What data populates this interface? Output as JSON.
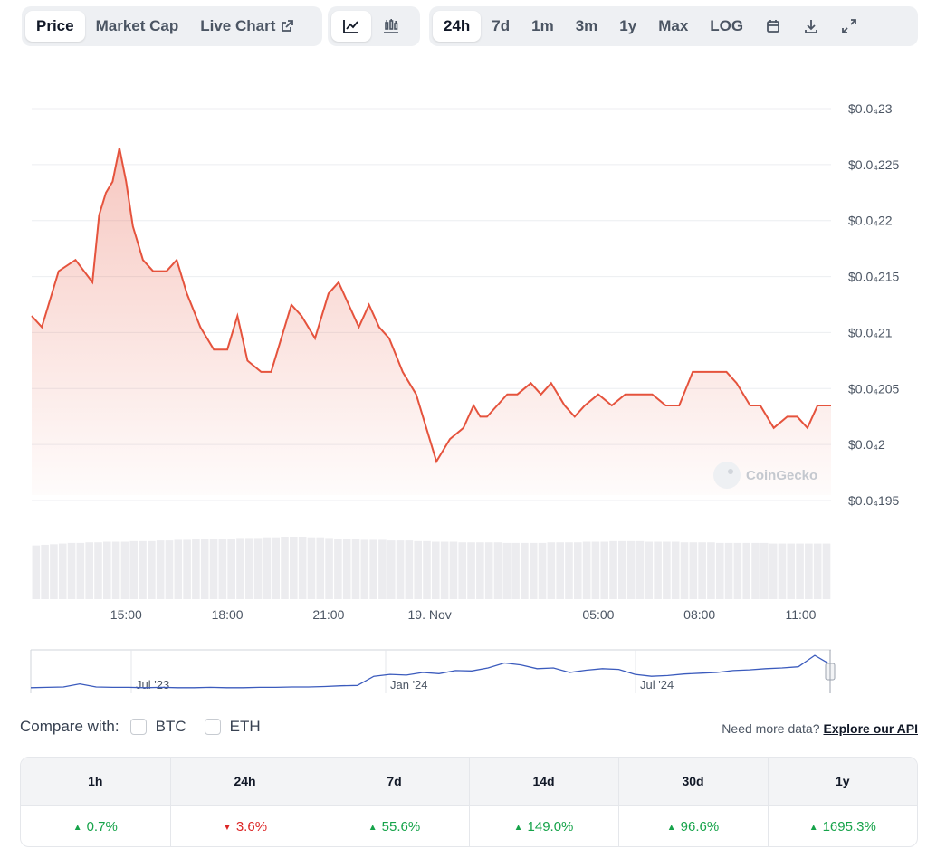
{
  "toolbar": {
    "type_tabs": [
      {
        "label": "Price",
        "active": true
      },
      {
        "label": "Market Cap",
        "active": false
      },
      {
        "label": "Live Chart",
        "active": false
      }
    ],
    "view_icons": [
      "line-chart-icon",
      "candlestick-icon"
    ],
    "ranges": [
      {
        "label": "24h",
        "active": true
      },
      {
        "label": "7d",
        "active": false
      },
      {
        "label": "1m",
        "active": false
      },
      {
        "label": "3m",
        "active": false
      },
      {
        "label": "1y",
        "active": false
      },
      {
        "label": "Max",
        "active": false
      },
      {
        "label": "LOG",
        "active": false
      }
    ],
    "action_icons": [
      "calendar-icon",
      "download-icon",
      "expand-icon"
    ]
  },
  "chart_data": {
    "type": "area",
    "title": "",
    "xlabel": "",
    "ylabel": "",
    "y_tick_labels": [
      "$0.0₄23",
      "$0.0₄225",
      "$0.0₄22",
      "$0.0₄215",
      "$0.0₄21",
      "$0.0₄205",
      "$0.0₄2",
      "$0.0₄195"
    ],
    "y_tick_values": [
      2.3e-05,
      2.25e-05,
      2.2e-05,
      2.15e-05,
      2.1e-05,
      2.05e-05,
      2e-05,
      1.95e-05
    ],
    "ylim": [
      1.95e-05,
      2.3e-05
    ],
    "x_tick_labels": [
      "15:00",
      "18:00",
      "21:00",
      "19. Nov",
      "05:00",
      "08:00",
      "11:00"
    ],
    "x_tick_hours": [
      15,
      18,
      21,
      24,
      29,
      32,
      35
    ],
    "xlim_hours": [
      12.2,
      35.9
    ],
    "series": [
      {
        "color": "#e5533d",
        "x_hours": [
          12.2,
          12.5,
          13.0,
          13.5,
          14.0,
          14.2,
          14.4,
          14.6,
          14.8,
          15.0,
          15.2,
          15.5,
          15.8,
          16.2,
          16.5,
          16.8,
          17.2,
          17.6,
          18.0,
          18.3,
          18.6,
          19.0,
          19.3,
          19.6,
          19.9,
          20.2,
          20.6,
          21.0,
          21.3,
          21.6,
          21.9,
          22.2,
          22.5,
          22.8,
          23.2,
          23.6,
          23.9,
          24.2,
          24.6,
          25.0,
          25.3,
          25.5,
          25.7,
          26.0,
          26.3,
          26.6,
          27.0,
          27.3,
          27.6,
          28.0,
          28.3,
          28.6,
          29.0,
          29.4,
          29.8,
          30.2,
          30.6,
          31.0,
          31.4,
          31.8,
          32.2,
          32.5,
          32.8,
          33.1,
          33.5,
          33.8,
          34.2,
          34.6,
          34.9,
          35.2,
          35.5,
          35.9
        ],
        "values": [
          2.11e-05,
          2.1e-05,
          2.15e-05,
          2.16e-05,
          2.14e-05,
          2.2e-05,
          2.22e-05,
          2.23e-05,
          2.26e-05,
          2.23e-05,
          2.19e-05,
          2.16e-05,
          2.15e-05,
          2.15e-05,
          2.16e-05,
          2.13e-05,
          2.1e-05,
          2.08e-05,
          2.08e-05,
          2.11e-05,
          2.07e-05,
          2.06e-05,
          2.06e-05,
          2.09e-05,
          2.12e-05,
          2.11e-05,
          2.09e-05,
          2.13e-05,
          2.14e-05,
          2.12e-05,
          2.1e-05,
          2.12e-05,
          2.1e-05,
          2.09e-05,
          2.06e-05,
          2.04e-05,
          2.01e-05,
          1.98e-05,
          2e-05,
          2.01e-05,
          2.03e-05,
          2.02e-05,
          2.02e-05,
          2.03e-05,
          2.04e-05,
          2.04e-05,
          2.05e-05,
          2.04e-05,
          2.05e-05,
          2.03e-05,
          2.02e-05,
          2.03e-05,
          2.04e-05,
          2.03e-05,
          2.04e-05,
          2.04e-05,
          2.04e-05,
          2.03e-05,
          2.03e-05,
          2.06e-05,
          2.06e-05,
          2.06e-05,
          2.06e-05,
          2.05e-05,
          2.03e-05,
          2.03e-05,
          2.01e-05,
          2.02e-05,
          2.02e-05,
          2.01e-05,
          2.03e-05,
          2.03e-05
        ]
      }
    ],
    "volume": {
      "values": [
        0.86,
        0.87,
        0.88,
        0.89,
        0.9,
        0.9,
        0.91,
        0.91,
        0.92,
        0.92,
        0.92,
        0.93,
        0.93,
        0.93,
        0.94,
        0.94,
        0.95,
        0.95,
        0.96,
        0.96,
        0.97,
        0.97,
        0.97,
        0.98,
        0.98,
        0.98,
        0.99,
        0.99,
        1.0,
        1.0,
        1.0,
        0.99,
        0.99,
        0.98,
        0.97,
        0.96,
        0.96,
        0.95,
        0.95,
        0.95,
        0.94,
        0.94,
        0.94,
        0.93,
        0.93,
        0.92,
        0.92,
        0.92,
        0.91,
        0.91,
        0.91,
        0.91,
        0.91,
        0.9,
        0.9,
        0.9,
        0.9,
        0.9,
        0.91,
        0.91,
        0.91,
        0.91,
        0.92,
        0.92,
        0.92,
        0.93,
        0.93,
        0.93,
        0.93,
        0.92,
        0.92,
        0.92,
        0.92,
        0.91,
        0.91,
        0.91,
        0.91,
        0.9,
        0.9,
        0.9,
        0.9,
        0.9,
        0.9,
        0.89,
        0.89,
        0.89,
        0.89,
        0.89,
        0.89,
        0.89
      ]
    },
    "watermark": "CoinGecko",
    "grid": true
  },
  "navigator": {
    "labels": [
      "Jul '23",
      "Jan '24",
      "Jul '24"
    ],
    "series_values": [
      0.1,
      0.11,
      0.12,
      0.2,
      0.12,
      0.11,
      0.11,
      0.1,
      0.11,
      0.1,
      0.1,
      0.11,
      0.1,
      0.1,
      0.11,
      0.11,
      0.12,
      0.12,
      0.13,
      0.15,
      0.16,
      0.4,
      0.45,
      0.43,
      0.5,
      0.47,
      0.55,
      0.54,
      0.62,
      0.75,
      0.7,
      0.6,
      0.62,
      0.5,
      0.56,
      0.6,
      0.58,
      0.45,
      0.4,
      0.42,
      0.46,
      0.48,
      0.5,
      0.55,
      0.57,
      0.6,
      0.62,
      0.65,
      0.95,
      0.7
    ]
  },
  "compare": {
    "label": "Compare with:",
    "options": [
      "BTC",
      "ETH"
    ],
    "more_text": "Need more data?",
    "more_link": "Explore our API"
  },
  "stats": [
    {
      "period": "1h",
      "value": "0.7%",
      "dir": "up"
    },
    {
      "period": "24h",
      "value": "3.6%",
      "dir": "down"
    },
    {
      "period": "7d",
      "value": "55.6%",
      "dir": "up"
    },
    {
      "period": "14d",
      "value": "149.0%",
      "dir": "up"
    },
    {
      "period": "30d",
      "value": "96.6%",
      "dir": "up"
    },
    {
      "period": "1y",
      "value": "1695.3%",
      "dir": "up"
    }
  ],
  "colors": {
    "line": "#e5533d",
    "up": "#16a34a",
    "down": "#dc2626",
    "nav_line": "#3b5bbd"
  }
}
